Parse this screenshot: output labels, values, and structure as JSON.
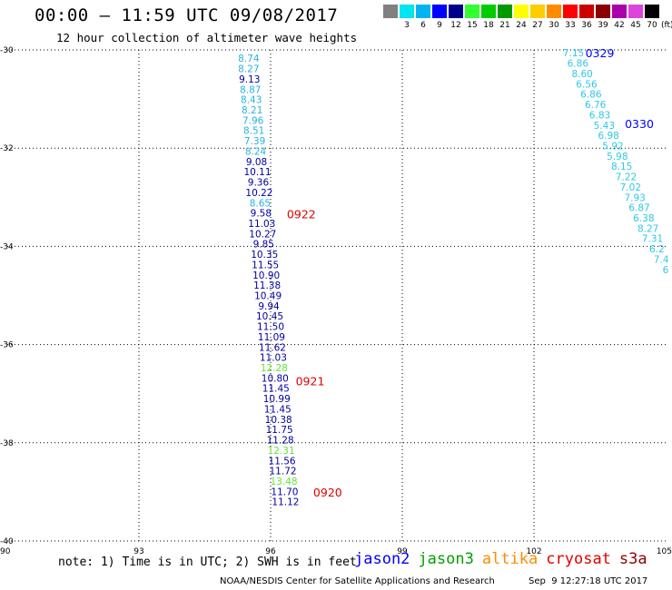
{
  "header": {
    "title": "00:00 – 11:59 UTC 09/08/2017",
    "subtitle": "12 hour collection of altimeter wave heights"
  },
  "colorbar": {
    "unit": "(ft)",
    "bins": [
      {
        "color": "#808080",
        "label": ""
      },
      {
        "color": "#00e5f0",
        "label": "3"
      },
      {
        "color": "#00b4f0",
        "label": "6"
      },
      {
        "color": "#0000ff",
        "label": "9"
      },
      {
        "color": "#00008b",
        "label": "12"
      },
      {
        "color": "#33ff33",
        "label": "15"
      },
      {
        "color": "#00cc00",
        "label": "18"
      },
      {
        "color": "#009900",
        "label": "21"
      },
      {
        "color": "#ffff00",
        "label": "24"
      },
      {
        "color": "#ffcc00",
        "label": "27"
      },
      {
        "color": "#ff8c00",
        "label": "30"
      },
      {
        "color": "#ff0000",
        "label": "33"
      },
      {
        "color": "#cc0000",
        "label": "36"
      },
      {
        "color": "#8b0000",
        "label": "39"
      },
      {
        "color": "#aa00aa",
        "label": "42"
      },
      {
        "color": "#dd44dd",
        "label": "45"
      },
      {
        "color": "#000000",
        "label": "70"
      }
    ]
  },
  "chart_data": {
    "type": "scatter",
    "xlim": [
      90,
      105
    ],
    "ylim": [
      -40,
      -30
    ],
    "x_ticks": [
      90,
      93,
      96,
      99,
      102,
      105
    ],
    "y_ticks": [
      -30,
      -32,
      -34,
      -36,
      -38,
      -40
    ],
    "grid": true,
    "colors": {
      "lightblue": "#27b3e0",
      "cyan": "#2ec7e6",
      "navy": "#0000a0",
      "green": "#66e23a",
      "red": "#e00000",
      "blue": "#0000ff"
    },
    "tracks": [
      {
        "name": "pass-0920-0922",
        "points": [
          {
            "lon": 95.5,
            "lat": -30.17,
            "value": "8.74",
            "color": "lightblue"
          },
          {
            "lon": 95.5,
            "lat": -30.38,
            "value": "8.27",
            "color": "lightblue"
          },
          {
            "lon": 95.52,
            "lat": -30.59,
            "value": "9.13",
            "color": "navy"
          },
          {
            "lon": 95.54,
            "lat": -30.8,
            "value": "8.87",
            "color": "lightblue"
          },
          {
            "lon": 95.56,
            "lat": -31.01,
            "value": "8.43",
            "color": "lightblue"
          },
          {
            "lon": 95.58,
            "lat": -31.22,
            "value": "8.21",
            "color": "lightblue"
          },
          {
            "lon": 95.6,
            "lat": -31.43,
            "value": "7.96",
            "color": "lightblue"
          },
          {
            "lon": 95.62,
            "lat": -31.64,
            "value": "8.51",
            "color": "lightblue"
          },
          {
            "lon": 95.64,
            "lat": -31.85,
            "value": "7.39",
            "color": "lightblue"
          },
          {
            "lon": 95.66,
            "lat": -32.06,
            "value": "8.24",
            "color": "lightblue"
          },
          {
            "lon": 95.68,
            "lat": -32.27,
            "value": "9.08",
            "color": "navy"
          },
          {
            "lon": 95.7,
            "lat": -32.48,
            "value": "10.11",
            "color": "navy"
          },
          {
            "lon": 95.72,
            "lat": -32.69,
            "value": "9.36",
            "color": "navy"
          },
          {
            "lon": 95.74,
            "lat": -32.9,
            "value": "10.22",
            "color": "navy"
          },
          {
            "lon": 95.76,
            "lat": -33.11,
            "value": "8.65",
            "color": "lightblue"
          },
          {
            "lon": 95.78,
            "lat": -33.32,
            "value": "9.58",
            "color": "navy"
          },
          {
            "lon": 95.8,
            "lat": -33.53,
            "value": "11.03",
            "color": "navy"
          },
          {
            "lon": 95.82,
            "lat": -33.74,
            "value": "10.27",
            "color": "navy"
          },
          {
            "lon": 95.84,
            "lat": -33.95,
            "value": "9.85",
            "color": "navy"
          },
          {
            "lon": 95.86,
            "lat": -34.16,
            "value": "10.35",
            "color": "navy"
          },
          {
            "lon": 95.88,
            "lat": -34.37,
            "value": "11.55",
            "color": "navy"
          },
          {
            "lon": 95.9,
            "lat": -34.58,
            "value": "10.90",
            "color": "navy"
          },
          {
            "lon": 95.92,
            "lat": -34.79,
            "value": "11.38",
            "color": "navy"
          },
          {
            "lon": 95.94,
            "lat": -35.0,
            "value": "10.49",
            "color": "navy"
          },
          {
            "lon": 95.96,
            "lat": -35.21,
            "value": "9.94",
            "color": "navy"
          },
          {
            "lon": 95.98,
            "lat": -35.42,
            "value": "10.45",
            "color": "navy"
          },
          {
            "lon": 96.0,
            "lat": -35.63,
            "value": "11.50",
            "color": "navy"
          },
          {
            "lon": 96.02,
            "lat": -35.84,
            "value": "11.09",
            "color": "navy"
          },
          {
            "lon": 96.04,
            "lat": -36.05,
            "value": "11.62",
            "color": "navy"
          },
          {
            "lon": 96.06,
            "lat": -36.26,
            "value": "11.03",
            "color": "navy"
          },
          {
            "lon": 96.08,
            "lat": -36.47,
            "value": "12.28",
            "color": "green"
          },
          {
            "lon": 96.1,
            "lat": -36.68,
            "value": "10.80",
            "color": "navy"
          },
          {
            "lon": 96.12,
            "lat": -36.89,
            "value": "11.45",
            "color": "navy"
          },
          {
            "lon": 96.14,
            "lat": -37.1,
            "value": "10.99",
            "color": "navy"
          },
          {
            "lon": 96.16,
            "lat": -37.31,
            "value": "11.45",
            "color": "navy"
          },
          {
            "lon": 96.18,
            "lat": -37.52,
            "value": "10.38",
            "color": "navy"
          },
          {
            "lon": 96.2,
            "lat": -37.73,
            "value": "11.75",
            "color": "navy"
          },
          {
            "lon": 96.22,
            "lat": -37.94,
            "value": "11.28",
            "color": "navy"
          },
          {
            "lon": 96.24,
            "lat": -38.15,
            "value": "12.31",
            "color": "green"
          },
          {
            "lon": 96.26,
            "lat": -38.36,
            "value": "11.56",
            "color": "navy"
          },
          {
            "lon": 96.28,
            "lat": -38.57,
            "value": "11.72",
            "color": "navy"
          },
          {
            "lon": 96.3,
            "lat": -38.78,
            "value": "13.48",
            "color": "green"
          },
          {
            "lon": 96.32,
            "lat": -38.99,
            "value": "11.70",
            "color": "navy"
          },
          {
            "lon": 96.34,
            "lat": -39.2,
            "value": "11.12",
            "color": "navy"
          }
        ]
      },
      {
        "name": "pass-0329-0330",
        "points": [
          {
            "lon": 102.9,
            "lat": -30.06,
            "value": "7.15",
            "color": "cyan"
          },
          {
            "lon": 103.0,
            "lat": -30.27,
            "value": "6.86",
            "color": "cyan"
          },
          {
            "lon": 103.1,
            "lat": -30.48,
            "value": "8.60",
            "color": "cyan"
          },
          {
            "lon": 103.2,
            "lat": -30.69,
            "value": "6.56",
            "color": "cyan"
          },
          {
            "lon": 103.3,
            "lat": -30.9,
            "value": "6.86",
            "color": "cyan"
          },
          {
            "lon": 103.4,
            "lat": -31.11,
            "value": "6.76",
            "color": "cyan"
          },
          {
            "lon": 103.5,
            "lat": -31.32,
            "value": "6.83",
            "color": "cyan"
          },
          {
            "lon": 103.6,
            "lat": -31.53,
            "value": "5.43",
            "color": "cyan"
          },
          {
            "lon": 103.7,
            "lat": -31.74,
            "value": "6.98",
            "color": "cyan"
          },
          {
            "lon": 103.8,
            "lat": -31.95,
            "value": "5.92",
            "color": "cyan"
          },
          {
            "lon": 103.9,
            "lat": -32.16,
            "value": "5.98",
            "color": "cyan"
          },
          {
            "lon": 104.0,
            "lat": -32.37,
            "value": "8.15",
            "color": "cyan"
          },
          {
            "lon": 104.1,
            "lat": -32.58,
            "value": "7.22",
            "color": "cyan"
          },
          {
            "lon": 104.2,
            "lat": -32.79,
            "value": "7.02",
            "color": "cyan"
          },
          {
            "lon": 104.3,
            "lat": -33.0,
            "value": "7.93",
            "color": "cyan"
          },
          {
            "lon": 104.4,
            "lat": -33.21,
            "value": "6.87",
            "color": "cyan"
          },
          {
            "lon": 104.5,
            "lat": -33.42,
            "value": "6.38",
            "color": "cyan"
          },
          {
            "lon": 104.6,
            "lat": -33.63,
            "value": "8.27",
            "color": "cyan"
          },
          {
            "lon": 104.7,
            "lat": -33.84,
            "value": "7.31",
            "color": "cyan"
          },
          {
            "lon": 104.8,
            "lat": -34.05,
            "value": "6.2",
            "color": "cyan"
          },
          {
            "lon": 104.9,
            "lat": -34.26,
            "value": "7.4",
            "color": "cyan"
          },
          {
            "lon": 105.0,
            "lat": -34.47,
            "value": "6",
            "color": "cyan"
          }
        ]
      }
    ],
    "time_labels": [
      {
        "text": "0922",
        "lon": 96.7,
        "lat": -33.34,
        "color": "red"
      },
      {
        "text": "0921",
        "lon": 96.9,
        "lat": -36.74,
        "color": "red"
      },
      {
        "text": "0920",
        "lon": 97.3,
        "lat": -39.0,
        "color": "red"
      },
      {
        "text": "0329",
        "lon": 103.5,
        "lat": -30.06,
        "color": "blue"
      },
      {
        "text": "0330",
        "lon": 104.4,
        "lat": -31.5,
        "color": "blue"
      }
    ]
  },
  "footer": {
    "note": "note: 1) Time is in UTC; 2) SWH is in feet",
    "legend": [
      {
        "name": "jason2",
        "color": "#0000ff"
      },
      {
        "name": "jason3",
        "color": "#00a000"
      },
      {
        "name": "altika",
        "color": "#ff8c00"
      },
      {
        "name": "cryosat",
        "color": "#e00000"
      },
      {
        "name": "s3a",
        "color": "#8b0000"
      }
    ],
    "credit": "NOAA/NESDIS Center for Satellite Applications and Research",
    "generated": "Sep  9 12:27:18 UTC 2017"
  }
}
